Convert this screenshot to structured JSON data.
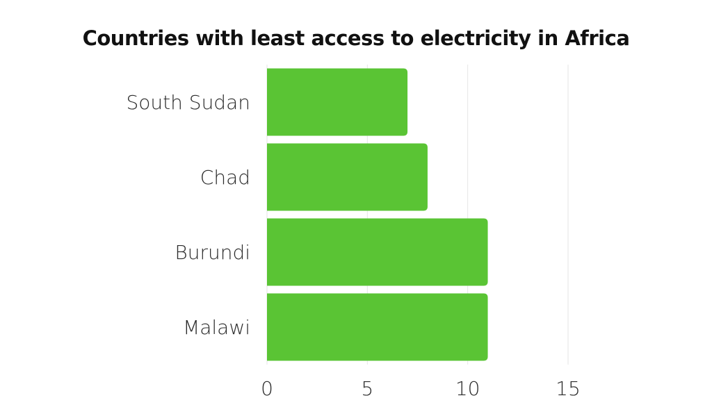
{
  "chart_data": {
    "type": "bar",
    "orientation": "horizontal",
    "title": "Countries with least access to electricity in Africa",
    "categories": [
      "South Sudan",
      "Chad",
      "Burundi",
      "Malawi"
    ],
    "values": [
      7,
      8,
      11,
      11
    ],
    "xlim": [
      0,
      15
    ],
    "xticks": [
      "0",
      "5",
      "10",
      "15"
    ],
    "xlabel": "",
    "ylabel": "",
    "grid": "vertical",
    "legend": "none",
    "bar_color": "#5ac434",
    "grid_color": "#e6e6e6"
  }
}
